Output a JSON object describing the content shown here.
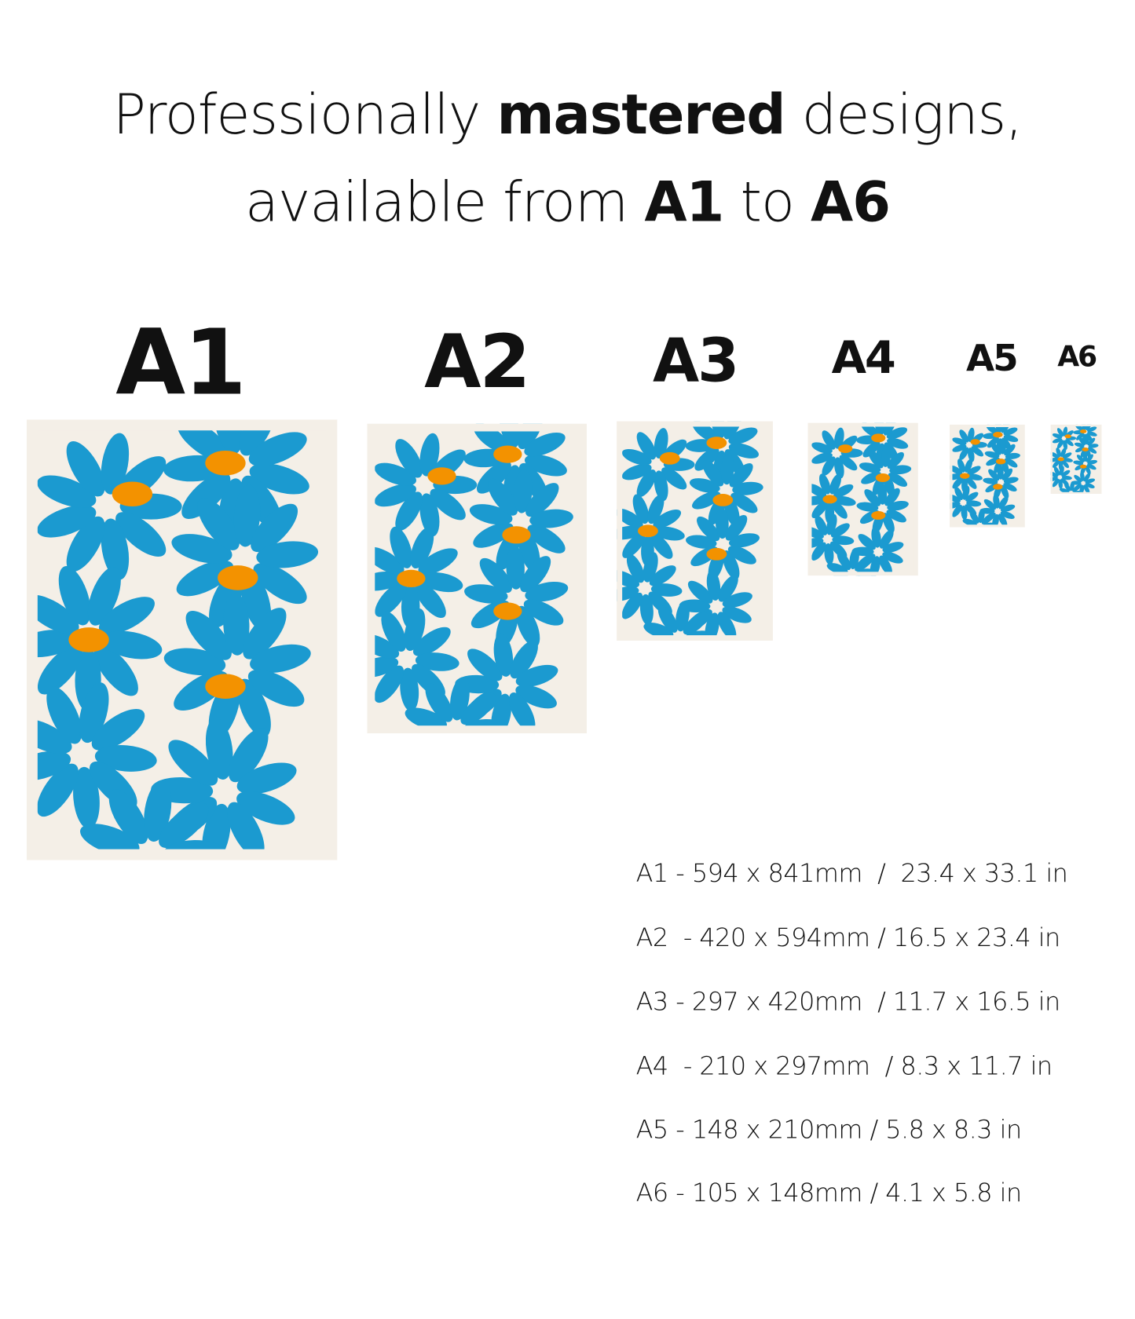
{
  "headline": {
    "line1_pre": "Professionally ",
    "line1_bold": "mastered",
    "line1_post": " designs,",
    "line2_pre": "available from ",
    "line2_bold1": "A1",
    "line2_mid": " to ",
    "line2_bold2": "A6"
  },
  "sizes": [
    {
      "label": "A1",
      "spec": "A1 - 594 x 841mm  /  23.4 x 33.1 in"
    },
    {
      "label": "A2",
      "spec": "A2  - 420 x 594mm / 16.5 x 23.4 in"
    },
    {
      "label": "A3",
      "spec": "A3 - 297 x 420mm  / 11.7 x 16.5 in"
    },
    {
      "label": "A4",
      "spec": "A4  - 210 x 297mm  / 8.3 x 11.7 in"
    },
    {
      "label": "A5",
      "spec": "A5 - 148 x 210mm / 5.8 x 8.3 in"
    },
    {
      "label": "A6",
      "spec": "A6 - 105 x 148mm / 4.1 x 5.8 in"
    }
  ],
  "colors": {
    "background": "#ffffff",
    "paper": "#f4efe7",
    "petal": "#1b9ad0",
    "center": "#f39200"
  }
}
